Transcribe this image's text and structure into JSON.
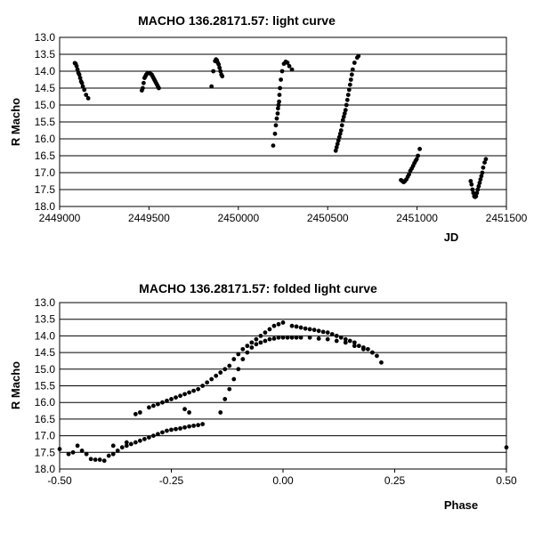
{
  "chart_data": [
    {
      "type": "scatter",
      "title": "MACHO 136.28171.57: light curve",
      "xlabel": "JD",
      "ylabel": "R Macho",
      "xlim": [
        2449000,
        2451500
      ],
      "ylim": [
        13.0,
        18.0
      ],
      "y_inverted": true,
      "grid": "horizontal",
      "x_ticks": [
        "2449000",
        "2449500",
        "2450000",
        "2450500",
        "2451000",
        "2451500"
      ],
      "y_ticks": [
        "13.0",
        "13.5",
        "14.0",
        "14.5",
        "15.0",
        "15.5",
        "16.0",
        "16.5",
        "17.0",
        "17.5",
        "18.0"
      ],
      "points": [
        [
          2449085,
          13.76
        ],
        [
          2449090,
          13.78
        ],
        [
          2449095,
          13.85
        ],
        [
          2449100,
          13.95
        ],
        [
          2449105,
          14.05
        ],
        [
          2449110,
          14.1
        ],
        [
          2449115,
          14.2
        ],
        [
          2449120,
          14.3
        ],
        [
          2449125,
          14.35
        ],
        [
          2449130,
          14.45
        ],
        [
          2449138,
          14.55
        ],
        [
          2449148,
          14.7
        ],
        [
          2449160,
          14.8
        ],
        [
          2449460,
          14.57
        ],
        [
          2449465,
          14.5
        ],
        [
          2449470,
          14.35
        ],
        [
          2449475,
          14.2
        ],
        [
          2449480,
          14.15
        ],
        [
          2449485,
          14.1
        ],
        [
          2449492,
          14.05
        ],
        [
          2449500,
          14.05
        ],
        [
          2449507,
          14.07
        ],
        [
          2449515,
          14.1
        ],
        [
          2449520,
          14.15
        ],
        [
          2449525,
          14.2
        ],
        [
          2449530,
          14.25
        ],
        [
          2449535,
          14.3
        ],
        [
          2449540,
          14.35
        ],
        [
          2449545,
          14.4
        ],
        [
          2449550,
          14.45
        ],
        [
          2449555,
          14.5
        ],
        [
          2449850,
          14.45
        ],
        [
          2449860,
          14.0
        ],
        [
          2449870,
          13.7
        ],
        [
          2449875,
          13.65
        ],
        [
          2449880,
          13.68
        ],
        [
          2449885,
          13.75
        ],
        [
          2449890,
          13.8
        ],
        [
          2449895,
          13.9
        ],
        [
          2449900,
          14.0
        ],
        [
          2449905,
          14.1
        ],
        [
          2449910,
          14.15
        ],
        [
          2450195,
          16.2
        ],
        [
          2450205,
          15.85
        ],
        [
          2450210,
          15.6
        ],
        [
          2450215,
          15.4
        ],
        [
          2450220,
          15.25
        ],
        [
          2450222,
          15.1
        ],
        [
          2450225,
          15.0
        ],
        [
          2450228,
          14.9
        ],
        [
          2450230,
          14.7
        ],
        [
          2450233,
          14.5
        ],
        [
          2450238,
          14.25
        ],
        [
          2450245,
          14.0
        ],
        [
          2450255,
          13.78
        ],
        [
          2450265,
          13.72
        ],
        [
          2450275,
          13.75
        ],
        [
          2450285,
          13.85
        ],
        [
          2450300,
          13.95
        ],
        [
          2450545,
          16.35
        ],
        [
          2450550,
          16.25
        ],
        [
          2450555,
          16.15
        ],
        [
          2450560,
          16.05
        ],
        [
          2450565,
          15.95
        ],
        [
          2450570,
          15.85
        ],
        [
          2450575,
          15.75
        ],
        [
          2450580,
          15.6
        ],
        [
          2450585,
          15.45
        ],
        [
          2450590,
          15.35
        ],
        [
          2450595,
          15.25
        ],
        [
          2450600,
          15.15
        ],
        [
          2450605,
          15.0
        ],
        [
          2450610,
          14.85
        ],
        [
          2450615,
          14.7
        ],
        [
          2450620,
          14.55
        ],
        [
          2450625,
          14.4
        ],
        [
          2450630,
          14.25
        ],
        [
          2450635,
          14.1
        ],
        [
          2450640,
          13.95
        ],
        [
          2450650,
          13.75
        ],
        [
          2450665,
          13.6
        ],
        [
          2450672,
          13.55
        ],
        [
          2450910,
          17.22
        ],
        [
          2450918,
          17.25
        ],
        [
          2450925,
          17.28
        ],
        [
          2450932,
          17.25
        ],
        [
          2450940,
          17.2
        ],
        [
          2450948,
          17.12
        ],
        [
          2450955,
          17.05
        ],
        [
          2450962,
          16.95
        ],
        [
          2450970,
          16.88
        ],
        [
          2450978,
          16.8
        ],
        [
          2450985,
          16.72
        ],
        [
          2450992,
          16.65
        ],
        [
          2450998,
          16.6
        ],
        [
          2451005,
          16.5
        ],
        [
          2451015,
          16.3
        ],
        [
          2451300,
          17.25
        ],
        [
          2451305,
          17.35
        ],
        [
          2451310,
          17.5
        ],
        [
          2451315,
          17.6
        ],
        [
          2451320,
          17.7
        ],
        [
          2451325,
          17.72
        ],
        [
          2451330,
          17.7
        ],
        [
          2451335,
          17.6
        ],
        [
          2451340,
          17.5
        ],
        [
          2451345,
          17.4
        ],
        [
          2451350,
          17.3
        ],
        [
          2451355,
          17.2
        ],
        [
          2451360,
          17.1
        ],
        [
          2451365,
          17.0
        ],
        [
          2451370,
          16.85
        ],
        [
          2451378,
          16.7
        ],
        [
          2451385,
          16.6
        ]
      ]
    },
    {
      "type": "scatter",
      "title": "MACHO 136.28171.57: folded light curve",
      "xlabel": "Phase",
      "ylabel": "R Macho",
      "xlim": [
        -0.5,
        0.5
      ],
      "ylim": [
        13.0,
        18.0
      ],
      "y_inverted": true,
      "grid": "horizontal",
      "x_ticks": [
        "-0.50",
        "-0.25",
        "0.00",
        "0.25",
        "0.50"
      ],
      "y_ticks": [
        "13.0",
        "13.5",
        "14.0",
        "14.5",
        "15.0",
        "15.5",
        "16.0",
        "16.5",
        "17.0",
        "17.5",
        "18.0"
      ],
      "points": [
        [
          -0.5,
          17.4
        ],
        [
          -0.48,
          17.55
        ],
        [
          -0.47,
          17.5
        ],
        [
          -0.46,
          17.3
        ],
        [
          -0.45,
          17.45
        ],
        [
          -0.44,
          17.55
        ],
        [
          -0.43,
          17.7
        ],
        [
          -0.42,
          17.72
        ],
        [
          -0.41,
          17.72
        ],
        [
          -0.4,
          17.75
        ],
        [
          -0.39,
          17.6
        ],
        [
          -0.38,
          17.55
        ],
        [
          -0.37,
          17.45
        ],
        [
          -0.36,
          17.35
        ],
        [
          -0.35,
          17.3
        ],
        [
          -0.34,
          17.25
        ],
        [
          -0.33,
          17.2
        ],
        [
          -0.32,
          17.15
        ],
        [
          -0.31,
          17.1
        ],
        [
          -0.3,
          17.05
        ],
        [
          -0.29,
          17.0
        ],
        [
          -0.28,
          16.95
        ],
        [
          -0.27,
          16.9
        ],
        [
          -0.26,
          16.85
        ],
        [
          -0.25,
          16.82
        ],
        [
          -0.24,
          16.8
        ],
        [
          -0.23,
          16.78
        ],
        [
          -0.22,
          16.75
        ],
        [
          -0.21,
          16.72
        ],
        [
          -0.2,
          16.7
        ],
        [
          -0.19,
          16.68
        ],
        [
          -0.18,
          16.65
        ],
        [
          -0.38,
          17.3
        ],
        [
          -0.35,
          17.2
        ],
        [
          -0.33,
          16.35
        ],
        [
          -0.32,
          16.3
        ],
        [
          -0.3,
          16.15
        ],
        [
          -0.29,
          16.1
        ],
        [
          -0.28,
          16.05
        ],
        [
          -0.27,
          16.0
        ],
        [
          -0.26,
          15.95
        ],
        [
          -0.25,
          15.9
        ],
        [
          -0.24,
          15.85
        ],
        [
          -0.23,
          15.8
        ],
        [
          -0.22,
          15.75
        ],
        [
          -0.21,
          15.7
        ],
        [
          -0.2,
          15.65
        ],
        [
          -0.19,
          15.6
        ],
        [
          -0.18,
          15.5
        ],
        [
          -0.17,
          15.4
        ],
        [
          -0.16,
          15.3
        ],
        [
          -0.15,
          15.2
        ],
        [
          -0.14,
          15.1
        ],
        [
          -0.13,
          15.0
        ],
        [
          -0.12,
          14.9
        ],
        [
          -0.11,
          14.7
        ],
        [
          -0.1,
          14.55
        ],
        [
          -0.09,
          14.4
        ],
        [
          -0.08,
          14.3
        ],
        [
          -0.07,
          14.2
        ],
        [
          -0.06,
          14.1
        ],
        [
          -0.05,
          14.0
        ],
        [
          -0.04,
          13.9
        ],
        [
          -0.03,
          13.8
        ],
        [
          -0.02,
          13.7
        ],
        [
          -0.01,
          13.65
        ],
        [
          0.0,
          13.6
        ],
        [
          -0.22,
          16.2
        ],
        [
          -0.21,
          16.3
        ],
        [
          -0.14,
          16.3
        ],
        [
          -0.13,
          15.9
        ],
        [
          -0.12,
          15.6
        ],
        [
          -0.11,
          15.3
        ],
        [
          -0.1,
          15.0
        ],
        [
          -0.09,
          14.7
        ],
        [
          -0.08,
          14.5
        ],
        [
          -0.07,
          14.35
        ],
        [
          -0.06,
          14.25
        ],
        [
          -0.05,
          14.2
        ],
        [
          -0.04,
          14.15
        ],
        [
          -0.03,
          14.1
        ],
        [
          -0.02,
          14.08
        ],
        [
          -0.01,
          14.05
        ],
        [
          0.0,
          14.05
        ],
        [
          0.01,
          14.05
        ],
        [
          0.02,
          14.05
        ],
        [
          0.03,
          14.05
        ],
        [
          0.02,
          13.7
        ],
        [
          0.03,
          13.72
        ],
        [
          0.04,
          13.75
        ],
        [
          0.05,
          13.78
        ],
        [
          0.06,
          13.8
        ],
        [
          0.07,
          13.82
        ],
        [
          0.08,
          13.85
        ],
        [
          0.09,
          13.88
        ],
        [
          0.1,
          13.9
        ],
        [
          0.11,
          13.95
        ],
        [
          0.12,
          14.0
        ],
        [
          0.13,
          14.05
        ],
        [
          0.14,
          14.1
        ],
        [
          0.15,
          14.15
        ],
        [
          0.16,
          14.2
        ],
        [
          0.17,
          14.3
        ],
        [
          0.18,
          14.35
        ],
        [
          0.19,
          14.4
        ],
        [
          0.2,
          14.5
        ],
        [
          0.21,
          14.6
        ],
        [
          0.22,
          14.8
        ],
        [
          0.04,
          14.05
        ],
        [
          0.06,
          14.05
        ],
        [
          0.08,
          14.08
        ],
        [
          0.1,
          14.1
        ],
        [
          0.12,
          14.15
        ],
        [
          0.14,
          14.2
        ],
        [
          0.16,
          14.3
        ],
        [
          0.18,
          14.4
        ],
        [
          0.2,
          14.5
        ],
        [
          0.5,
          17.35
        ]
      ]
    }
  ]
}
